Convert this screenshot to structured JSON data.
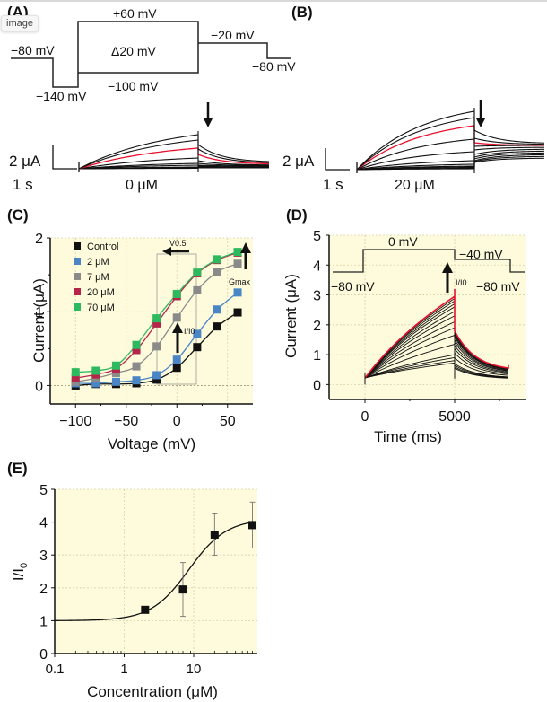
{
  "overlay": {
    "badge": "image"
  },
  "panels": {
    "A": {
      "label": "(A)",
      "protocol": {
        "hold": "−80 mV",
        "prepulse": "−140 mV",
        "top": "+60 mV",
        "step": "Δ20 mV",
        "bottom": "−100 mV",
        "tail": "−20 mV",
        "end": "−80 mV"
      },
      "scale": {
        "current": "2 μA",
        "time": "1 s"
      },
      "condition": "0 μM"
    },
    "B": {
      "label": "(B)",
      "scale": {
        "current": "2 μA",
        "time": "1 s"
      },
      "condition": "20 μM"
    },
    "D_protocol": {
      "hold": "−80 mV",
      "step": "0 mV",
      "tail": "−40 mV",
      "end": "−80 mV",
      "arrow_label": "I/I0"
    }
  },
  "chart_data": [
    {
      "panel": "(C)",
      "type": "line",
      "title": "",
      "xlabel": "Voltage (mV)",
      "ylabel": "Current (μA)",
      "xlim": [
        -125,
        75
      ],
      "ylim": [
        -0.25,
        2
      ],
      "xticks": [
        -100,
        -50,
        0,
        50
      ],
      "yticks": [
        0,
        1,
        2
      ],
      "grid": true,
      "legend_position": "top-left",
      "x": [
        -100,
        -80,
        -60,
        -40,
        -20,
        0,
        20,
        40,
        60
      ],
      "series": [
        {
          "name": "Control",
          "color": "#111111",
          "values": [
            0.0,
            0.02,
            0.02,
            0.03,
            0.08,
            0.24,
            0.52,
            0.8,
            0.99
          ]
        },
        {
          "name": "2 μM",
          "color": "#4a86c6",
          "values": [
            0.03,
            0.03,
            0.05,
            0.07,
            0.14,
            0.35,
            0.7,
            1.03,
            1.26
          ]
        },
        {
          "name": "7 μM",
          "color": "#8a8a8a",
          "values": [
            0.05,
            0.1,
            0.17,
            0.26,
            0.53,
            0.92,
            1.29,
            1.54,
            1.65
          ]
        },
        {
          "name": "20 μM",
          "color": "#b5254a",
          "values": [
            0.1,
            0.15,
            0.23,
            0.48,
            0.84,
            1.21,
            1.52,
            1.7,
            1.8
          ]
        },
        {
          "name": "70 μM",
          "color": "#2dba5e",
          "values": [
            0.18,
            0.2,
            0.27,
            0.55,
            0.91,
            1.24,
            1.53,
            1.71,
            1.81
          ]
        }
      ],
      "annotations": [
        {
          "text": "V0.5",
          "note": "leftward arrow above box spanning -20 to 20 mV"
        },
        {
          "text": "I/I0",
          "note": "upward arrow at 0 mV"
        },
        {
          "text": "Gmax",
          "note": "upward arrow at 60 mV"
        }
      ]
    },
    {
      "panel": "(D)",
      "type": "line",
      "title": "",
      "xlabel": "Time (ms)",
      "ylabel": "Current (μA)",
      "xlim": [
        -2000,
        9000
      ],
      "ylim": [
        -0.5,
        5
      ],
      "xticks": [
        0,
        5000
      ],
      "yticks": [
        0,
        1,
        2,
        3,
        4,
        5
      ],
      "grid": true,
      "step_time_ms": [
        0,
        5000
      ],
      "trace_end_ms": 8000,
      "activation_peak_values": [
        0.72,
        0.8,
        0.9,
        1.0,
        1.35,
        1.65,
        1.9,
        2.1,
        2.3,
        2.45,
        2.6,
        2.7,
        2.8,
        2.88,
        2.95
      ],
      "highlight_trace": {
        "color": "#e8112d",
        "peak": 2.95,
        "tail_start": 1.8,
        "tail_end": 0.45
      }
    },
    {
      "panel": "(E)",
      "type": "scatter",
      "title": "",
      "xlabel": "Concentration (μM)",
      "ylabel": "I/I0",
      "xscale": "log",
      "xlim": [
        0.1,
        70
      ],
      "ylim": [
        0,
        5
      ],
      "xticks": [
        "0.1",
        "1",
        "10"
      ],
      "yticks": [
        0,
        1,
        2,
        3,
        4,
        5
      ],
      "grid": true,
      "x": [
        2,
        7,
        20,
        70
      ],
      "y": [
        1.33,
        1.95,
        3.62,
        3.91
      ],
      "yerr": [
        0.05,
        0.82,
        0.63,
        0.7
      ],
      "fit": {
        "type": "hill",
        "bottom": 1.0,
        "top": 4.1,
        "ec50": 8.5,
        "hill": 1.6
      }
    }
  ]
}
